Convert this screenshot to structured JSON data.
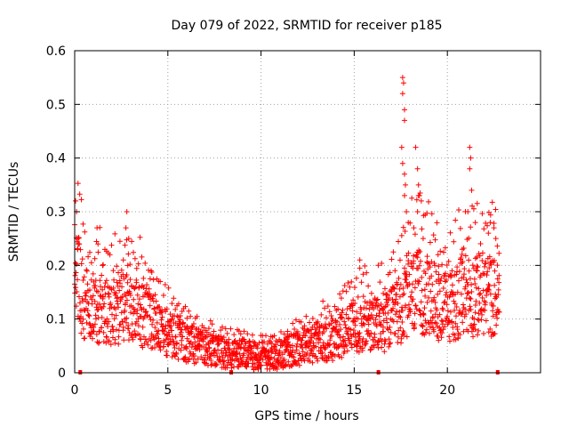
{
  "chart_data": {
    "type": "scatter",
    "title": "Day 079 of 2022, SRMTID for receiver p185",
    "xlabel": "GPS time / hours",
    "ylabel": "SRMTID / TECUs",
    "xlim": [
      0,
      25
    ],
    "ylim": [
      0,
      0.6
    ],
    "xticks": [
      0,
      5,
      10,
      15,
      20
    ],
    "yticks": [
      0,
      0.1,
      0.2,
      0.3,
      0.4,
      0.5,
      0.6
    ],
    "xtick_labels": [
      "0",
      "5",
      "10",
      "15",
      "20"
    ],
    "ytick_labels": [
      "0",
      "0.1",
      "0.2",
      "0.3",
      "0.4",
      "0.5",
      "0.6"
    ],
    "grid": true,
    "marker": "plus",
    "color": "#ff0000",
    "series": [
      {
        "name": "SRMTID",
        "profile": [
          [
            0.0,
            0.15
          ],
          [
            0.2,
            0.17
          ],
          [
            0.5,
            0.13
          ],
          [
            1.0,
            0.12
          ],
          [
            1.5,
            0.12
          ],
          [
            2.0,
            0.11
          ],
          [
            2.5,
            0.12
          ],
          [
            3.0,
            0.12
          ],
          [
            3.5,
            0.11
          ],
          [
            4.0,
            0.1
          ],
          [
            4.5,
            0.08
          ],
          [
            5.0,
            0.07
          ],
          [
            5.5,
            0.065
          ],
          [
            6.0,
            0.055
          ],
          [
            6.5,
            0.05
          ],
          [
            7.0,
            0.045
          ],
          [
            7.5,
            0.04
          ],
          [
            8.0,
            0.038
          ],
          [
            8.5,
            0.035
          ],
          [
            9.0,
            0.035
          ],
          [
            9.5,
            0.032
          ],
          [
            10.0,
            0.033
          ],
          [
            10.5,
            0.032
          ],
          [
            11.0,
            0.033
          ],
          [
            11.5,
            0.04
          ],
          [
            12.0,
            0.045
          ],
          [
            12.5,
            0.05
          ],
          [
            13.0,
            0.055
          ],
          [
            13.5,
            0.06
          ],
          [
            14.0,
            0.065
          ],
          [
            14.5,
            0.075
          ],
          [
            15.0,
            0.085
          ],
          [
            15.5,
            0.09
          ],
          [
            16.0,
            0.085
          ],
          [
            16.5,
            0.09
          ],
          [
            17.0,
            0.1
          ],
          [
            17.5,
            0.12
          ],
          [
            18.0,
            0.14
          ],
          [
            18.5,
            0.15
          ],
          [
            19.0,
            0.14
          ],
          [
            19.5,
            0.13
          ],
          [
            20.0,
            0.12
          ],
          [
            20.5,
            0.13
          ],
          [
            21.0,
            0.15
          ],
          [
            21.5,
            0.14
          ],
          [
            22.0,
            0.15
          ],
          [
            22.5,
            0.14
          ],
          [
            22.8,
            0.13
          ]
        ],
        "spikes": [
          [
            0.05,
            0.32
          ],
          [
            0.1,
            0.3
          ],
          [
            0.15,
            0.25
          ],
          [
            0.2,
            0.24
          ],
          [
            1.2,
            0.27
          ],
          [
            1.25,
            0.24
          ],
          [
            1.5,
            0.2
          ],
          [
            2.8,
            0.3
          ],
          [
            2.75,
            0.27
          ],
          [
            2.9,
            0.25
          ],
          [
            2.85,
            0.2
          ],
          [
            4.1,
            0.19
          ],
          [
            15.3,
            0.21
          ],
          [
            17.6,
            0.55
          ],
          [
            17.65,
            0.54
          ],
          [
            17.6,
            0.52
          ],
          [
            17.7,
            0.49
          ],
          [
            17.7,
            0.47
          ],
          [
            17.55,
            0.42
          ],
          [
            17.6,
            0.39
          ],
          [
            17.7,
            0.37
          ],
          [
            17.75,
            0.35
          ],
          [
            17.7,
            0.33
          ],
          [
            17.8,
            0.3
          ],
          [
            17.9,
            0.28
          ],
          [
            18.3,
            0.42
          ],
          [
            18.4,
            0.38
          ],
          [
            18.45,
            0.35
          ],
          [
            18.5,
            0.33
          ],
          [
            18.4,
            0.3
          ],
          [
            18.6,
            0.32
          ],
          [
            18.2,
            0.27
          ],
          [
            18.7,
            0.25
          ],
          [
            21.2,
            0.42
          ],
          [
            21.25,
            0.4
          ],
          [
            21.2,
            0.38
          ],
          [
            21.3,
            0.34
          ],
          [
            21.1,
            0.3
          ],
          [
            21.5,
            0.28
          ],
          [
            22.3,
            0.28
          ],
          [
            22.5,
            0.27
          ],
          [
            22.2,
            0.26
          ],
          [
            22.6,
            0.25
          ],
          [
            20.8,
            0.23
          ],
          [
            19.5,
            0.22
          ]
        ]
      }
    ],
    "gap_markers_x": [
      0.3,
      8.4,
      16.3,
      22.7
    ]
  }
}
